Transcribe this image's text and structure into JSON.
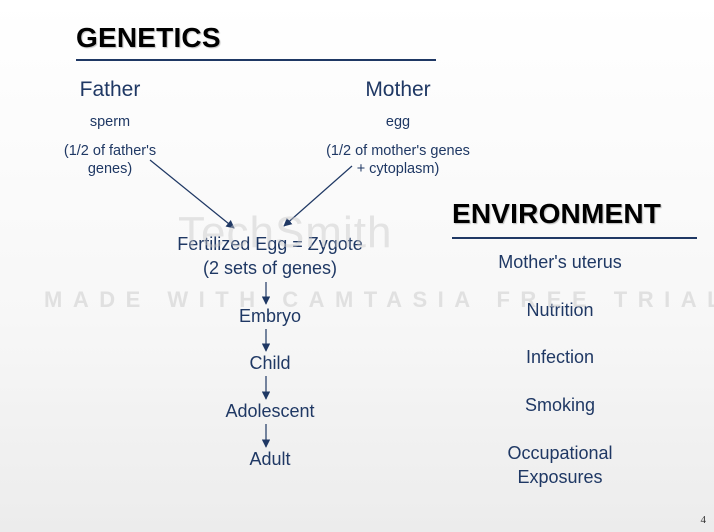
{
  "genetics": {
    "title": "GENETICS",
    "father": {
      "label": "Father",
      "cell": "sperm",
      "genes_line1": "(1/2 of father's",
      "genes_line2": "genes)"
    },
    "mother": {
      "label": "Mother",
      "cell": "egg",
      "genes_line1": "(1/2 of mother's genes",
      "genes_line2": "+ cytoplasm)"
    },
    "zygote_line1": "Fertilized Egg = Zygote",
    "zygote_line2": "(2 sets of genes)",
    "stages": [
      "Embryo",
      "Child",
      "Adolescent",
      "Adult"
    ]
  },
  "environment": {
    "title": "ENVIRONMENT",
    "items": [
      "Mother's uterus",
      "Nutrition",
      "Infection",
      "Smoking"
    ],
    "last_item_line1": "Occupational",
    "last_item_line2": "Exposures"
  },
  "slide_number": "4",
  "watermark": {
    "brand": "TechSmith",
    "banner": "MADE WITH CAMTASIA FREE TRIAL"
  },
  "colors": {
    "text": "#1f3864",
    "heading": "#000000",
    "arrow": "#1f3864"
  }
}
